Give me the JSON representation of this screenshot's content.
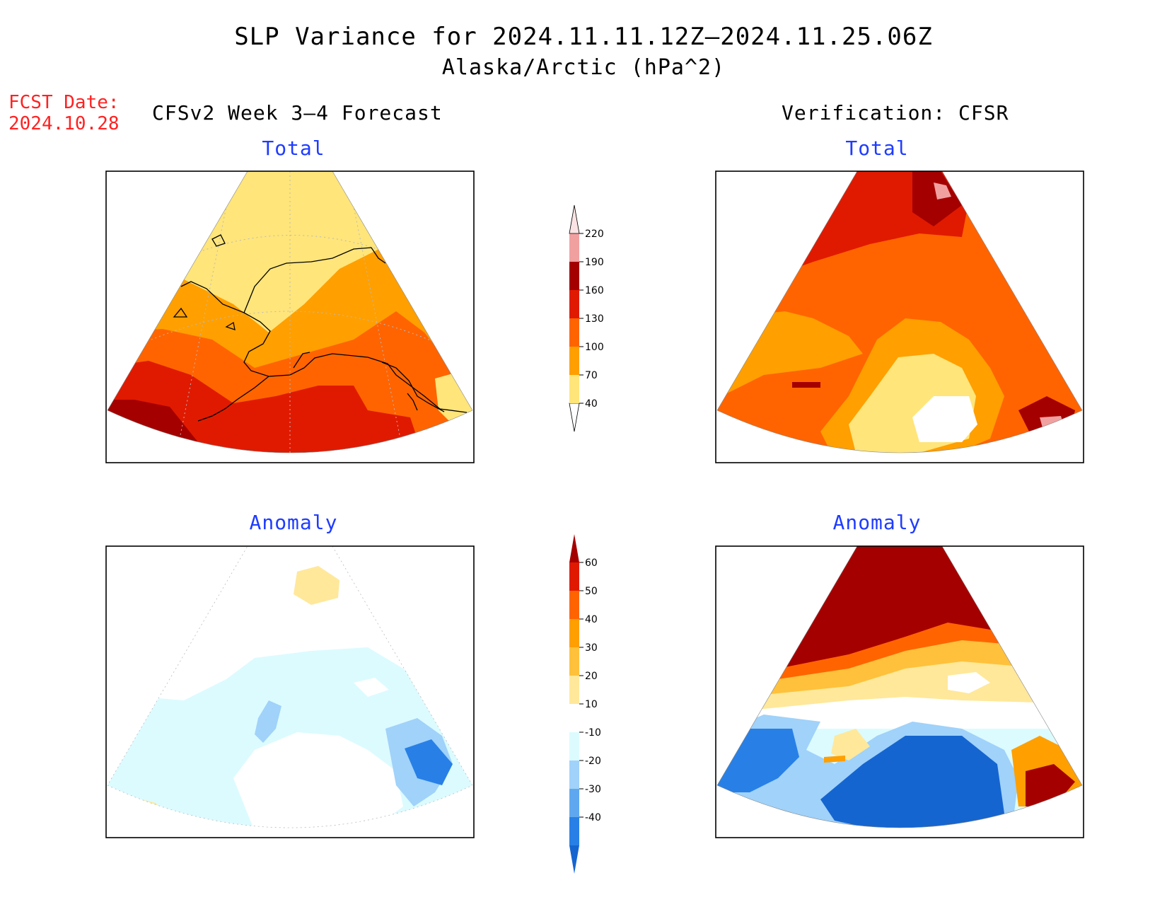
{
  "header": {
    "title": "SLP Variance for 2024.11.11.12Z–2024.11.25.06Z",
    "subtitle": "Alaska/Arctic (hPa^2)",
    "fcst_label": "FCST Date:",
    "fcst_date": "2024.10.28",
    "left_column": "CFSv2 Week 3–4 Forecast",
    "right_column": "Verification: CFSR"
  },
  "panels": {
    "fcst_total": {
      "title": "Total"
    },
    "verif_total": {
      "title": "Total"
    },
    "fcst_anom": {
      "title": "Anomaly"
    },
    "verif_anom": {
      "title": "Anomaly"
    }
  },
  "total_colorbar": {
    "levels": [
      "40",
      "70",
      "100",
      "130",
      "160",
      "190",
      "220"
    ],
    "colors": [
      "#ffe57a",
      "#ff9f00",
      "#ff6400",
      "#e01a00",
      "#a50000",
      "#f1a0a0",
      "#fbe3e3"
    ]
  },
  "anomaly_colorbar": {
    "levels": [
      "60",
      "50",
      "40",
      "30",
      "20",
      "10",
      "-10",
      "-20",
      "-30",
      "-40"
    ],
    "colors_top_to_bottom": [
      "#a50000",
      "#e01a00",
      "#ff6400",
      "#ff9f00",
      "#ffc13b",
      "#ffe89a",
      "#ffffff",
      "#dcfbff",
      "#a0d2fa",
      "#5fa8f0",
      "#2880e6",
      "#1565d0"
    ]
  },
  "colors": {
    "yellow": "#ffe57a",
    "orange": "#ff9f00",
    "dark_orange": "#ff6400",
    "red": "#e01a00",
    "dark_red": "#a50000",
    "pink": "#f1a0a0",
    "light_yellow": "#ffe89a",
    "light_cyan": "#dcfbff",
    "light_blue": "#a0d2fa",
    "mid_blue": "#5fa8f0",
    "blue": "#2880e6",
    "deep_blue": "#1565d0",
    "title_blue": "#1f3cff",
    "fcst_red": "#ff2222"
  }
}
